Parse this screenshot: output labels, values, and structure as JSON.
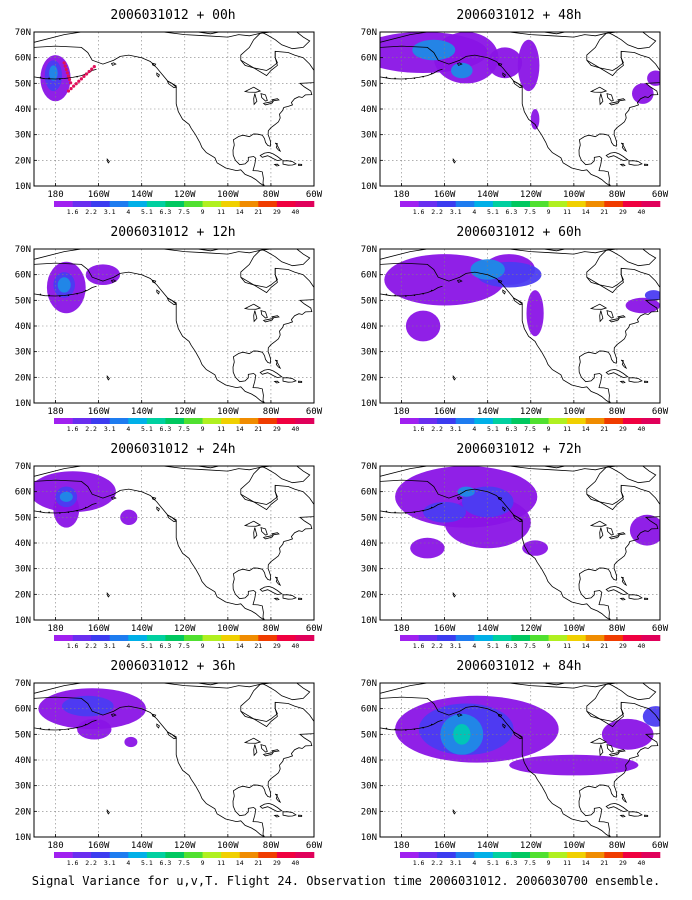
{
  "caption": "Signal Variance for u,v,T. Flight 24. Observation time 2006031012. 2006030700 ensemble.",
  "panels": [
    {
      "title": "2006031012 + 00h",
      "col": 0,
      "row": 0,
      "blobs": [
        {
          "lon": 180,
          "lat": 52,
          "rx": 7,
          "ry": 9,
          "level": 0
        },
        {
          "lon": 181,
          "lat": 53,
          "rx": 4,
          "ry": 6,
          "level": 1
        },
        {
          "lon": 181,
          "lat": 54,
          "rx": 2,
          "ry": 3,
          "level": 2
        }
      ],
      "track": true
    },
    {
      "title": "2006031012 + 48h",
      "col": 1,
      "row": 0,
      "blobs": [
        {
          "lon": 170,
          "lat": 62,
          "rx": 30,
          "ry": 8,
          "level": 0
        },
        {
          "lon": 150,
          "lat": 60,
          "rx": 15,
          "ry": 10,
          "level": 0
        },
        {
          "lon": 132,
          "lat": 58,
          "rx": 8,
          "ry": 6,
          "level": 0
        },
        {
          "lon": 165,
          "lat": 63,
          "rx": 10,
          "ry": 4,
          "level": 2
        },
        {
          "lon": 152,
          "lat": 55,
          "rx": 5,
          "ry": 3,
          "level": 2
        },
        {
          "lon": 121,
          "lat": 57,
          "rx": 5,
          "ry": 10,
          "level": 0
        },
        {
          "lon": 118,
          "lat": 36,
          "rx": 2,
          "ry": 4,
          "level": 0
        },
        {
          "lon": 68,
          "lat": 46,
          "rx": 5,
          "ry": 4,
          "level": 0
        },
        {
          "lon": 62,
          "lat": 52,
          "rx": 4,
          "ry": 3,
          "level": 0
        }
      ]
    },
    {
      "title": "2006031012 + 12h",
      "col": 0,
      "row": 1,
      "blobs": [
        {
          "lon": 175,
          "lat": 55,
          "rx": 9,
          "ry": 10,
          "level": 0
        },
        {
          "lon": 176,
          "lat": 56,
          "rx": 5,
          "ry": 5,
          "level": 1
        },
        {
          "lon": 176,
          "lat": 56,
          "rx": 3,
          "ry": 3,
          "level": 2
        },
        {
          "lon": 158,
          "lat": 60,
          "rx": 8,
          "ry": 4,
          "level": 0
        }
      ]
    },
    {
      "title": "2006031012 + 60h",
      "col": 1,
      "row": 1,
      "blobs": [
        {
          "lon": 160,
          "lat": 58,
          "rx": 28,
          "ry": 10,
          "level": 0
        },
        {
          "lon": 130,
          "lat": 62,
          "rx": 12,
          "ry": 6,
          "level": 0
        },
        {
          "lon": 130,
          "lat": 60,
          "rx": 15,
          "ry": 5,
          "level": 1
        },
        {
          "lon": 140,
          "lat": 62,
          "rx": 8,
          "ry": 4,
          "level": 2
        },
        {
          "lon": 170,
          "lat": 40,
          "rx": 8,
          "ry": 6,
          "level": 0
        },
        {
          "lon": 118,
          "lat": 45,
          "rx": 4,
          "ry": 9,
          "level": 0
        },
        {
          "lon": 68,
          "lat": 48,
          "rx": 8,
          "ry": 3,
          "level": 0
        },
        {
          "lon": 63,
          "lat": 52,
          "rx": 4,
          "ry": 2,
          "level": 1
        }
      ]
    },
    {
      "title": "2006031012 + 24h",
      "col": 0,
      "row": 2,
      "blobs": [
        {
          "lon": 172,
          "lat": 60,
          "rx": 20,
          "ry": 8,
          "level": 0
        },
        {
          "lon": 175,
          "lat": 53,
          "rx": 6,
          "ry": 7,
          "level": 0
        },
        {
          "lon": 175,
          "lat": 58,
          "rx": 5,
          "ry": 4,
          "level": 1
        },
        {
          "lon": 175,
          "lat": 58,
          "rx": 3,
          "ry": 2,
          "level": 2
        },
        {
          "lon": 146,
          "lat": 50,
          "rx": 4,
          "ry": 3,
          "level": 0
        }
      ]
    },
    {
      "title": "2006031012 + 72h",
      "col": 1,
      "row": 2,
      "blobs": [
        {
          "lon": 150,
          "lat": 58,
          "rx": 33,
          "ry": 12,
          "level": 0
        },
        {
          "lon": 140,
          "lat": 48,
          "rx": 20,
          "ry": 10,
          "level": 0
        },
        {
          "lon": 160,
          "lat": 52,
          "rx": 10,
          "ry": 4,
          "level": 1
        },
        {
          "lon": 140,
          "lat": 56,
          "rx": 12,
          "ry": 6,
          "level": 1
        },
        {
          "lon": 150,
          "lat": 60,
          "rx": 4,
          "ry": 2,
          "level": 2
        },
        {
          "lon": 168,
          "lat": 38,
          "rx": 8,
          "ry": 4,
          "level": 0
        },
        {
          "lon": 118,
          "lat": 38,
          "rx": 6,
          "ry": 3,
          "level": 0
        },
        {
          "lon": 66,
          "lat": 45,
          "rx": 8,
          "ry": 6,
          "level": 0
        }
      ]
    },
    {
      "title": "2006031012 + 36h",
      "col": 0,
      "row": 3,
      "blobs": [
        {
          "lon": 163,
          "lat": 60,
          "rx": 25,
          "ry": 8,
          "level": 0
        },
        {
          "lon": 162,
          "lat": 52,
          "rx": 8,
          "ry": 4,
          "level": 0
        },
        {
          "lon": 145,
          "lat": 47,
          "rx": 3,
          "ry": 2,
          "level": 0
        },
        {
          "lon": 165,
          "lat": 61,
          "rx": 12,
          "ry": 4,
          "level": 1
        }
      ]
    },
    {
      "title": "2006031012 + 84h",
      "col": 1,
      "row": 3,
      "blobs": [
        {
          "lon": 145,
          "lat": 52,
          "rx": 38,
          "ry": 13,
          "level": 0
        },
        {
          "lon": 150,
          "lat": 52,
          "rx": 22,
          "ry": 10,
          "level": 1
        },
        {
          "lon": 152,
          "lat": 50,
          "rx": 10,
          "ry": 8,
          "level": 2
        },
        {
          "lon": 152,
          "lat": 50,
          "rx": 4,
          "ry": 4,
          "level": 3
        },
        {
          "lon": 100,
          "lat": 38,
          "rx": 30,
          "ry": 4,
          "level": 0
        },
        {
          "lon": 75,
          "lat": 50,
          "rx": 12,
          "ry": 6,
          "level": 0
        },
        {
          "lon": 62,
          "lat": 57,
          "rx": 6,
          "ry": 4,
          "level": 1
        }
      ]
    }
  ],
  "map_axes": {
    "lat_labels": [
      "10N",
      "20N",
      "30N",
      "40N",
      "50N",
      "60N",
      "70N"
    ],
    "lon_labels": [
      "180",
      "160W",
      "140W",
      "120W",
      "100W",
      "80W",
      "60W"
    ],
    "lat_range": [
      10,
      70
    ],
    "lon_range_west": [
      190,
      60
    ]
  },
  "colorbar": {
    "labels": [
      "1.6",
      "2.2",
      "3.1",
      "4",
      "5.1",
      "6.3",
      "7.5",
      "9",
      "11",
      "14",
      "21",
      "29",
      "40"
    ],
    "colors": [
      "#a020f0",
      "#6a2ef0",
      "#3c3cf0",
      "#1e7cf0",
      "#00b0e8",
      "#00d0a0",
      "#00c860",
      "#50e030",
      "#b0f020",
      "#f0d000",
      "#f08c00",
      "#f03c00",
      "#f00040",
      "#e0005a"
    ]
  },
  "variance_palette": [
    "#8a14e6",
    "#4b3cf2",
    "#1f8ae6",
    "#00c8b4"
  ]
}
